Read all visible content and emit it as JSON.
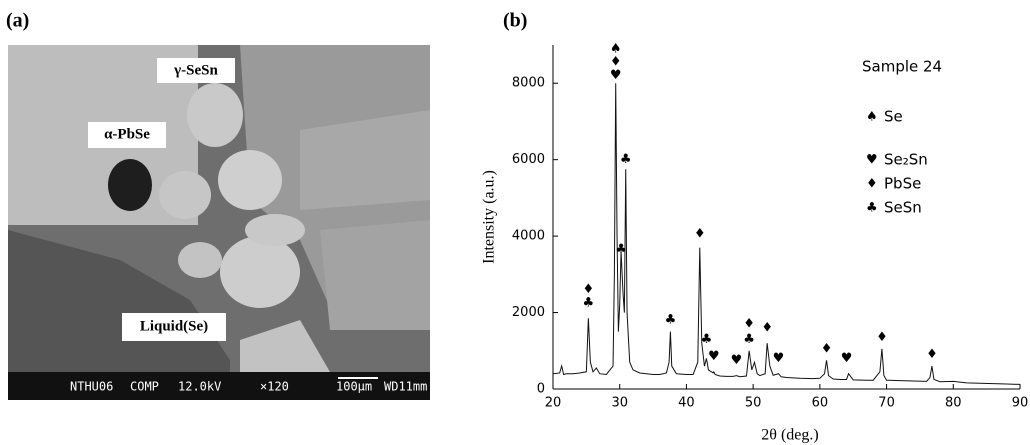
{
  "panel_a": {
    "label": "(a)",
    "annotations": [
      {
        "text": "γ-SeSn"
      },
      {
        "text": "α-PbSe"
      },
      {
        "text": "Liquid(Se)"
      }
    ],
    "scale_bar": [
      "NTHU06",
      "COMP",
      "12.0kV",
      "×120",
      "100μm",
      "WD11mm"
    ]
  },
  "chart_data": {
    "type": "line",
    "panel_label": "(b)",
    "x_label": "2θ (deg.)",
    "y_label": "Intensity (a.u.)",
    "color": "#111111",
    "x": [
      20,
      21,
      21.3,
      21.6,
      22,
      23,
      24,
      25,
      25.3,
      25.6,
      26,
      26.5,
      27,
      28,
      29,
      29.2,
      29.4,
      29.6,
      29.8,
      30,
      30.2,
      30.5,
      30.7,
      30.9,
      31.1,
      31.5,
      32,
      33,
      34,
      35,
      36,
      37,
      37.4,
      37.6,
      37.8,
      38.5,
      40,
      41,
      41.7,
      42,
      42.3,
      42.7,
      43,
      43.3,
      44,
      44.1,
      44.3,
      45,
      46,
      47,
      47.5,
      48,
      49,
      49.4,
      49.8,
      50.2,
      50.6,
      51,
      51.8,
      52.1,
      52.5,
      53,
      53.8,
      54.2,
      55,
      57,
      59,
      60,
      60.7,
      61,
      61.3,
      62,
      63,
      64,
      64.3,
      65,
      67,
      68,
      69,
      69.3,
      69.6,
      70,
      72,
      74,
      76,
      76.5,
      76.8,
      77.1,
      78,
      80,
      82,
      84,
      86,
      88,
      90
    ],
    "values": [
      400,
      420,
      600,
      380,
      400,
      400,
      420,
      450,
      1850,
      700,
      450,
      550,
      400,
      380,
      600,
      3000,
      8000,
      4000,
      1500,
      2200,
      3600,
      2500,
      2000,
      5750,
      2000,
      700,
      500,
      420,
      400,
      380,
      380,
      420,
      700,
      1500,
      600,
      400,
      380,
      380,
      700,
      3700,
      1200,
      600,
      800,
      500,
      420,
      450,
      380,
      340,
      330,
      330,
      350,
      320,
      340,
      1000,
      500,
      700,
      400,
      350,
      400,
      1200,
      600,
      360,
      400,
      320,
      300,
      280,
      270,
      280,
      400,
      750,
      350,
      260,
      250,
      250,
      400,
      240,
      230,
      230,
      450,
      1050,
      350,
      230,
      220,
      210,
      200,
      300,
      600,
      250,
      190,
      200,
      160,
      150,
      140,
      130,
      120
    ],
    "xlim": [
      20,
      90
    ],
    "ylim": [
      0,
      9000
    ],
    "xticks": [
      20,
      30,
      40,
      50,
      60,
      70,
      80,
      90
    ],
    "yticks": [
      0,
      2000,
      4000,
      6000,
      8000
    ],
    "legend_title": "Sample 24",
    "legend_entries": [
      {
        "symbol": "♠",
        "label": "Se"
      },
      {
        "symbol": "♥",
        "label": "Se₂Sn"
      },
      {
        "symbol": "♦",
        "label": "PbSe"
      },
      {
        "symbol": "♣",
        "label": "SeSn"
      }
    ],
    "annotations": [
      {
        "x": 25.3,
        "y": 2600,
        "text": "♦"
      },
      {
        "x": 25.3,
        "y": 2250,
        "text": "♣"
      },
      {
        "x": 29.4,
        "y": 8900,
        "text": "♠"
      },
      {
        "x": 29.4,
        "y": 8550,
        "text": "♦"
      },
      {
        "x": 29.4,
        "y": 8200,
        "text": "♥"
      },
      {
        "x": 30.2,
        "y": 3650,
        "text": "♣"
      },
      {
        "x": 30.9,
        "y": 6000,
        "text": "♣"
      },
      {
        "x": 37.6,
        "y": 1800,
        "text": "♣"
      },
      {
        "x": 42,
        "y": 4050,
        "text": "♦"
      },
      {
        "x": 43,
        "y": 1300,
        "text": "♣"
      },
      {
        "x": 44.1,
        "y": 850,
        "text": "♥"
      },
      {
        "x": 47.5,
        "y": 750,
        "text": "♥"
      },
      {
        "x": 49.4,
        "y": 1700,
        "text": "♦"
      },
      {
        "x": 49.4,
        "y": 1300,
        "text": "♣"
      },
      {
        "x": 52.1,
        "y": 1600,
        "text": "♦"
      },
      {
        "x": 53.8,
        "y": 800,
        "text": "♥"
      },
      {
        "x": 61,
        "y": 1050,
        "text": "♦"
      },
      {
        "x": 64,
        "y": 800,
        "text": "♥"
      },
      {
        "x": 69.3,
        "y": 1350,
        "text": "♦"
      },
      {
        "x": 76.8,
        "y": 900,
        "text": "♦"
      }
    ]
  }
}
